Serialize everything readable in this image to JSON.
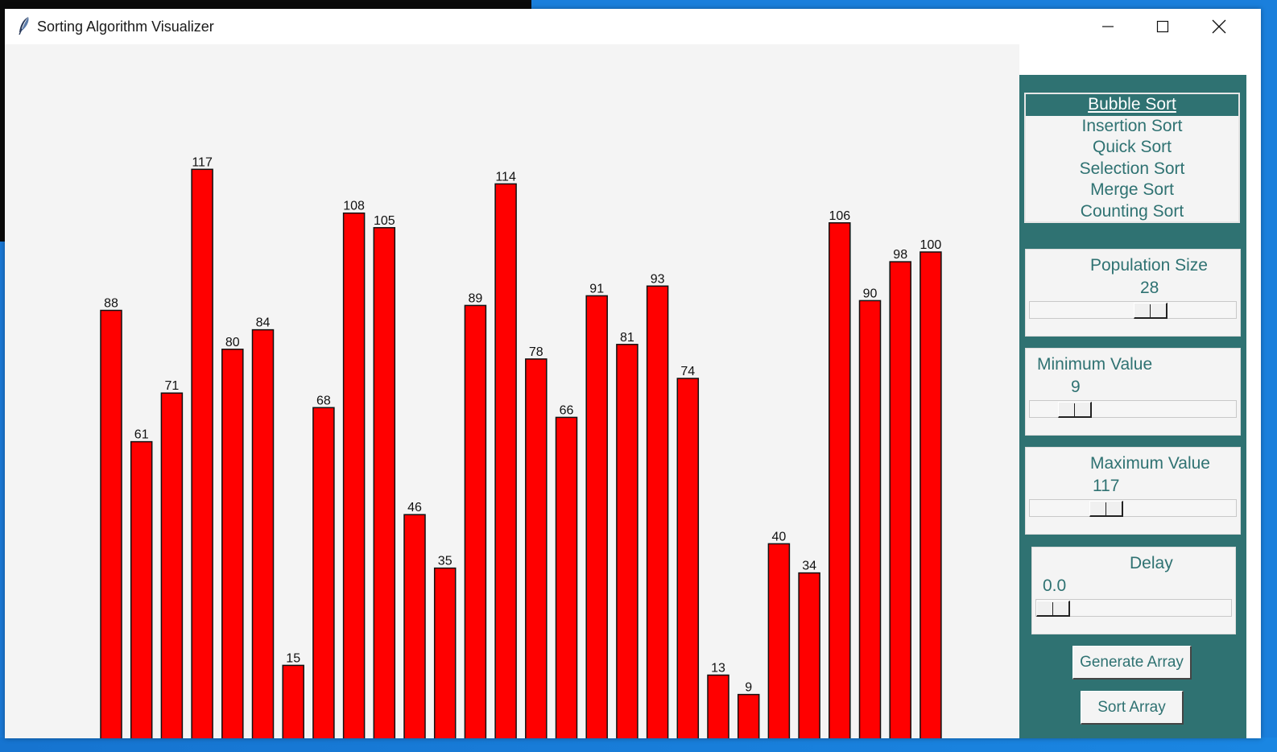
{
  "window": {
    "title": "Sorting Algorithm Visualizer"
  },
  "algorithms": {
    "items": [
      "Bubble Sort",
      "Insertion Sort",
      "Quick Sort",
      "Selection Sort",
      "Merge Sort",
      "Counting Sort"
    ],
    "selected_index": 0
  },
  "controls": {
    "population": {
      "label": "Population Size",
      "value": "28"
    },
    "minimum": {
      "label": "Minimum Value",
      "value": "9"
    },
    "maximum": {
      "label": "Maximum Value",
      "value": "117"
    },
    "delay": {
      "label": "Delay",
      "value": "0.0"
    },
    "generate_label": "Generate Array",
    "sort_label": "Sort Array"
  },
  "colors": {
    "bar": "#ff0000",
    "panel": "#2f7272",
    "canvas": "#f4f4f4"
  },
  "chart_data": {
    "type": "bar",
    "values": [
      88,
      61,
      71,
      117,
      80,
      84,
      15,
      68,
      108,
      105,
      46,
      35,
      89,
      114,
      78,
      66,
      91,
      81,
      93,
      74,
      13,
      9,
      40,
      34,
      106,
      90,
      98,
      100
    ]
  }
}
